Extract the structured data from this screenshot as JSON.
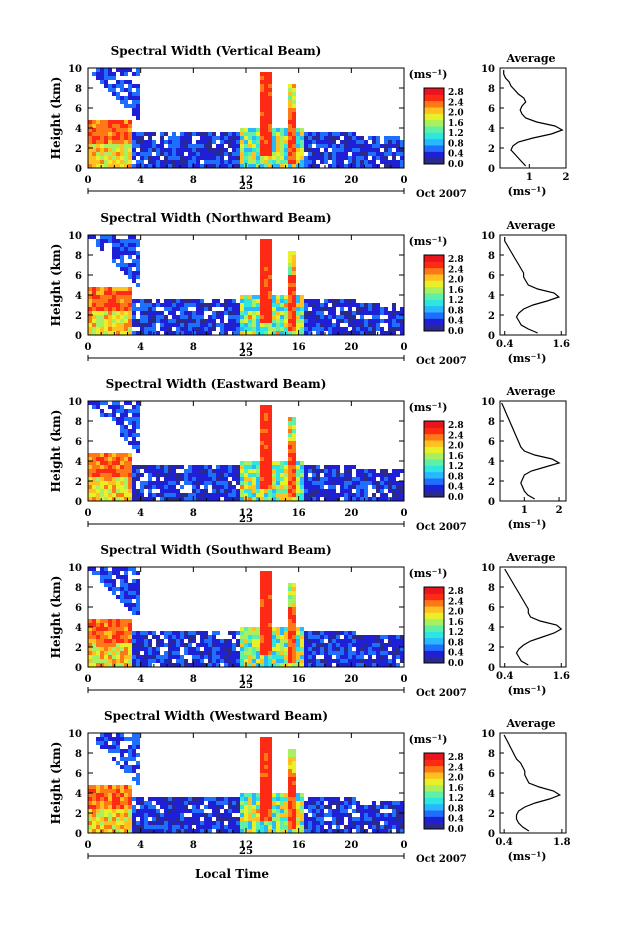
{
  "figure": {
    "bottom_xlabel": "Local Time",
    "avg_title": "Average",
    "unit_label": "(ms⁻¹)",
    "date_label": "Oct 2007",
    "day_label": "25",
    "ylabel": "Height (km)"
  },
  "colorbar": {
    "ticks": [
      "2.8",
      "2.4",
      "2.0",
      "1.6",
      "1.2",
      "0.8",
      "0.4",
      "0.0"
    ],
    "colors": [
      "#2a2a8c",
      "#1f1fd6",
      "#1f6fff",
      "#27b8ff",
      "#2de6e0",
      "#5ff0a8",
      "#a8f060",
      "#e8f02a",
      "#ffc020",
      "#ff7818",
      "#ff2a14",
      "#e8141e"
    ]
  },
  "chart_data": [
    {
      "type": "heatmap",
      "title": "Spectral Width (Vertical Beam)",
      "x_ticks": [
        "0",
        "4",
        "8",
        "12",
        "16",
        "20",
        "0"
      ],
      "xlim": [
        0,
        24
      ],
      "y_ticks": [
        "0",
        "2",
        "4",
        "6",
        "8",
        "10"
      ],
      "ylim": [
        0,
        10
      ],
      "profile": {
        "x_ticks": [
          "1",
          "2"
        ],
        "xlim": [
          0.2,
          2.0
        ],
        "heights": [
          0.2,
          0.6,
          1.0,
          1.4,
          1.8,
          2.2,
          2.6,
          3.0,
          3.4,
          3.8,
          4.2,
          4.6,
          5.0,
          5.4,
          5.8,
          6.2,
          6.6,
          7.0,
          7.4,
          7.8,
          8.2,
          8.6,
          9.0,
          9.4,
          9.8
        ],
        "values": [
          0.9,
          0.8,
          0.7,
          0.6,
          0.5,
          0.55,
          0.7,
          1.1,
          1.6,
          1.9,
          1.7,
          1.2,
          0.9,
          0.8,
          0.75,
          0.8,
          0.9,
          0.85,
          0.7,
          0.6,
          0.5,
          0.45,
          0.35,
          0.3,
          0.3
        ]
      }
    },
    {
      "type": "heatmap",
      "title": "Spectral Width (Northward Beam)",
      "x_ticks": [
        "0",
        "4",
        "8",
        "12",
        "16",
        "20",
        "0"
      ],
      "xlim": [
        0,
        24
      ],
      "y_ticks": [
        "0",
        "2",
        "4",
        "6",
        "8",
        "10"
      ],
      "ylim": [
        0,
        10
      ],
      "profile": {
        "x_ticks": [
          "0.4",
          "1.6"
        ],
        "xlim": [
          0.3,
          1.7
        ],
        "heights": [
          0.2,
          0.6,
          1.0,
          1.4,
          1.8,
          2.2,
          2.6,
          3.0,
          3.4,
          3.8,
          4.2,
          4.6,
          5.0,
          5.4,
          5.8,
          6.2,
          6.6,
          7.0,
          7.4,
          7.8,
          8.2,
          8.6,
          9.0,
          9.4,
          9.8
        ],
        "values": [
          1.1,
          0.9,
          0.75,
          0.7,
          0.65,
          0.7,
          0.8,
          1.0,
          1.3,
          1.55,
          1.45,
          1.1,
          0.9,
          0.85,
          0.8,
          0.8,
          0.75,
          0.7,
          0.65,
          0.6,
          0.55,
          0.5,
          0.45,
          0.4,
          0.4
        ]
      }
    },
    {
      "type": "heatmap",
      "title": "Spectral Width (Eastward Beam)",
      "x_ticks": [
        "0",
        "4",
        "8",
        "12",
        "16",
        "20",
        "0"
      ],
      "xlim": [
        0,
        24
      ],
      "y_ticks": [
        "0",
        "2",
        "4",
        "6",
        "8",
        "10"
      ],
      "ylim": [
        0,
        10
      ],
      "profile": {
        "x_ticks": [
          "1",
          "2"
        ],
        "xlim": [
          0.3,
          2.2
        ],
        "heights": [
          0.2,
          0.6,
          1.0,
          1.4,
          1.8,
          2.2,
          2.6,
          3.0,
          3.4,
          3.8,
          4.2,
          4.6,
          5.0,
          5.4,
          5.8,
          6.2,
          6.6,
          7.0,
          7.4,
          7.8,
          8.2,
          8.6,
          9.0,
          9.4,
          9.8
        ],
        "values": [
          1.3,
          1.1,
          1.0,
          0.95,
          0.9,
          0.95,
          1.0,
          1.2,
          1.6,
          2.0,
          1.8,
          1.3,
          1.0,
          0.9,
          0.85,
          0.8,
          0.75,
          0.7,
          0.65,
          0.6,
          0.55,
          0.5,
          0.45,
          0.4,
          0.35
        ]
      }
    },
    {
      "type": "heatmap",
      "title": "Spectral Width (Southward Beam)",
      "x_ticks": [
        "0",
        "4",
        "8",
        "12",
        "16",
        "20",
        "0"
      ],
      "xlim": [
        0,
        24
      ],
      "y_ticks": [
        "0",
        "2",
        "4",
        "6",
        "8",
        "10"
      ],
      "ylim": [
        0,
        10
      ],
      "profile": {
        "x_ticks": [
          "0.4",
          "1.6"
        ],
        "xlim": [
          0.3,
          1.7
        ],
        "heights": [
          0.2,
          0.6,
          1.0,
          1.4,
          1.8,
          2.2,
          2.6,
          3.0,
          3.4,
          3.8,
          4.2,
          4.6,
          5.0,
          5.4,
          5.8,
          6.2,
          6.6,
          7.0,
          7.4,
          7.8,
          8.2,
          8.6,
          9.0,
          9.4,
          9.8
        ],
        "values": [
          0.9,
          0.75,
          0.7,
          0.65,
          0.7,
          0.8,
          0.95,
          1.2,
          1.45,
          1.6,
          1.5,
          1.15,
          0.95,
          0.9,
          0.9,
          0.85,
          0.8,
          0.75,
          0.7,
          0.65,
          0.6,
          0.55,
          0.5,
          0.45,
          0.4
        ]
      }
    },
    {
      "type": "heatmap",
      "title": "Spectral Width (Westward Beam)",
      "x_ticks": [
        "0",
        "4",
        "8",
        "12",
        "16",
        "20",
        "0"
      ],
      "xlim": [
        0,
        24
      ],
      "y_ticks": [
        "0",
        "2",
        "4",
        "6",
        "8",
        "10"
      ],
      "ylim": [
        0,
        10
      ],
      "profile": {
        "x_ticks": [
          "0.4",
          "1.8"
        ],
        "xlim": [
          0.3,
          1.9
        ],
        "heights": [
          0.2,
          0.6,
          1.0,
          1.4,
          1.8,
          2.2,
          2.6,
          3.0,
          3.4,
          3.8,
          4.2,
          4.6,
          5.0,
          5.4,
          5.8,
          6.2,
          6.6,
          7.0,
          7.4,
          7.8,
          8.2,
          8.6,
          9.0,
          9.4,
          9.8
        ],
        "values": [
          1.0,
          0.85,
          0.75,
          0.7,
          0.7,
          0.75,
          0.9,
          1.15,
          1.5,
          1.75,
          1.6,
          1.25,
          1.0,
          0.95,
          0.9,
          0.9,
          0.85,
          0.8,
          0.7,
          0.65,
          0.6,
          0.55,
          0.5,
          0.45,
          0.4
        ]
      }
    }
  ]
}
